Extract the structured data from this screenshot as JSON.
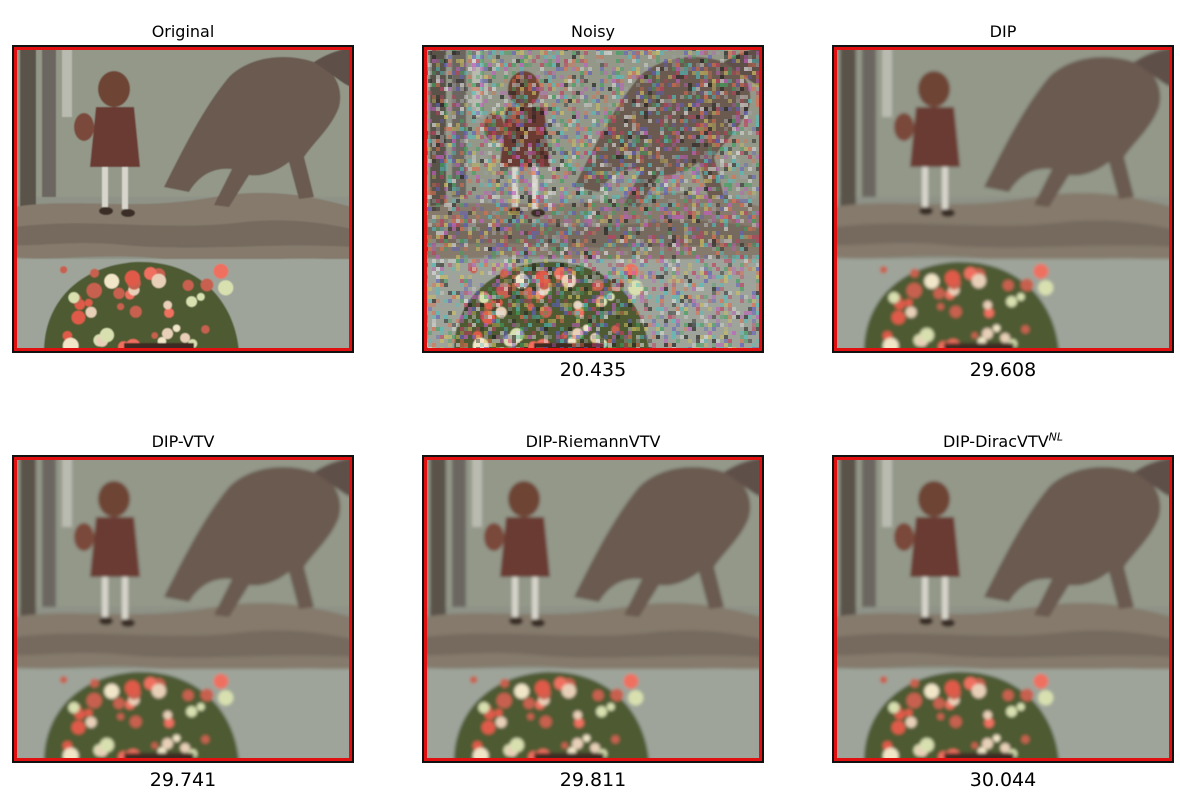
{
  "figure": {
    "panels": [
      {
        "title": "Original",
        "title_sup": "",
        "score": "",
        "variant": "clean"
      },
      {
        "title": "Noisy",
        "title_sup": "",
        "score": "20.435",
        "variant": "noisy"
      },
      {
        "title": "DIP",
        "title_sup": "",
        "score": "29.608",
        "variant": "smooth"
      },
      {
        "title": "DIP-VTV",
        "title_sup": "",
        "score": "29.741",
        "variant": "smooth"
      },
      {
        "title": "DIP-RiemannVTV",
        "title_sup": "",
        "score": "29.811",
        "variant": "smooth"
      },
      {
        "title": "DIP-DiracVTV",
        "title_sup": "NL",
        "score": "30.044",
        "variant": "smooth"
      }
    ],
    "colors": {
      "crop_border": "#e01010",
      "axes_border": "#111111",
      "background_wall": "#8e9287",
      "ground": "#857a6c",
      "water": "#9ea49a",
      "animal": "#6a5a50",
      "dress": "#6b3a30",
      "flowers_red": "#e05a4a",
      "leaves": "#4d5a30"
    }
  }
}
